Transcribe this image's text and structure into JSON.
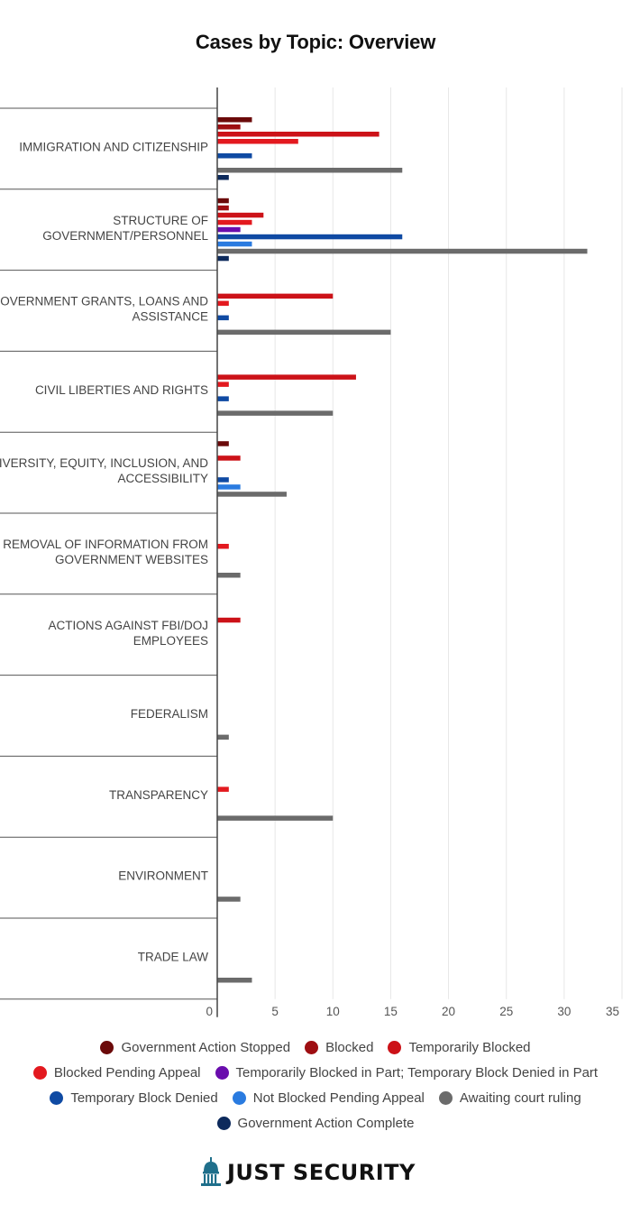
{
  "chart_data": {
    "type": "bar",
    "orientation": "horizontal",
    "title": "Cases by Topic: Overview",
    "xlim": [
      0,
      35
    ],
    "x_ticks": [
      "0",
      "5",
      "10",
      "15",
      "20",
      "25",
      "30",
      "35"
    ],
    "grid": true,
    "legend_position": "bottom",
    "categories": [
      [
        "IMMIGRATION AND CITIZENSHIP"
      ],
      [
        "STRUCTURE OF",
        "GOVERNMENT/PERSONNEL"
      ],
      [
        "GOVERNMENT GRANTS, LOANS AND",
        "ASSISTANCE"
      ],
      [
        "CIVIL LIBERTIES AND RIGHTS"
      ],
      [
        "DIVERSITY, EQUITY, INCLUSION, AND",
        "ACCESSIBILITY"
      ],
      [
        "REMOVAL OF INFORMATION FROM",
        "GOVERNMENT WEBSITES"
      ],
      [
        "ACTIONS AGAINST FBI/DOJ",
        "EMPLOYEES"
      ],
      [
        "FEDERALISM"
      ],
      [
        "TRANSPARENCY"
      ],
      [
        "ENVIRONMENT"
      ],
      [
        "TRADE LAW"
      ]
    ],
    "series": [
      {
        "name": "Government Action Stopped",
        "color": "#6b0a0a",
        "values": [
          3,
          1,
          0,
          0,
          1,
          0,
          0,
          0,
          0,
          0,
          0
        ]
      },
      {
        "name": "Blocked",
        "color": "#9e0e12",
        "values": [
          2,
          1,
          0,
          0,
          0,
          0,
          0,
          0,
          0,
          0,
          0
        ]
      },
      {
        "name": "Temporarily Blocked",
        "color": "#cc1218",
        "values": [
          14,
          4,
          10,
          12,
          2,
          0,
          2,
          0,
          0,
          0,
          0
        ]
      },
      {
        "name": "Blocked Pending Appeal",
        "color": "#e3191f",
        "values": [
          7,
          3,
          1,
          1,
          0,
          1,
          0,
          0,
          1,
          0,
          0
        ]
      },
      {
        "name": "Temporarily Blocked in Part; Temporary Block Denied in Part",
        "color": "#6a0dad",
        "values": [
          0,
          2,
          0,
          0,
          0,
          0,
          0,
          0,
          0,
          0,
          0
        ]
      },
      {
        "name": "Temporary Block Denied",
        "color": "#0f4aa3",
        "values": [
          3,
          16,
          1,
          1,
          1,
          0,
          0,
          0,
          0,
          0,
          0
        ]
      },
      {
        "name": "Not Blocked Pending Appeal",
        "color": "#2a7be0",
        "values": [
          0,
          3,
          0,
          0,
          2,
          0,
          0,
          0,
          0,
          0,
          0
        ]
      },
      {
        "name": "Awaiting court ruling",
        "color": "#6b6b6b",
        "values": [
          16,
          32,
          15,
          10,
          6,
          2,
          0,
          1,
          10,
          2,
          3
        ]
      },
      {
        "name": "Government Action Complete",
        "color": "#0d2a5c",
        "values": [
          1,
          1,
          0,
          0,
          0,
          0,
          0,
          0,
          0,
          0,
          0
        ]
      }
    ],
    "legend_rows": [
      [
        0,
        1,
        2
      ],
      [
        3,
        4
      ],
      [
        5,
        6,
        7
      ],
      [
        8
      ]
    ]
  },
  "logo": {
    "text": "JUST SECURITY",
    "icon": "capitol-dome-icon"
  }
}
